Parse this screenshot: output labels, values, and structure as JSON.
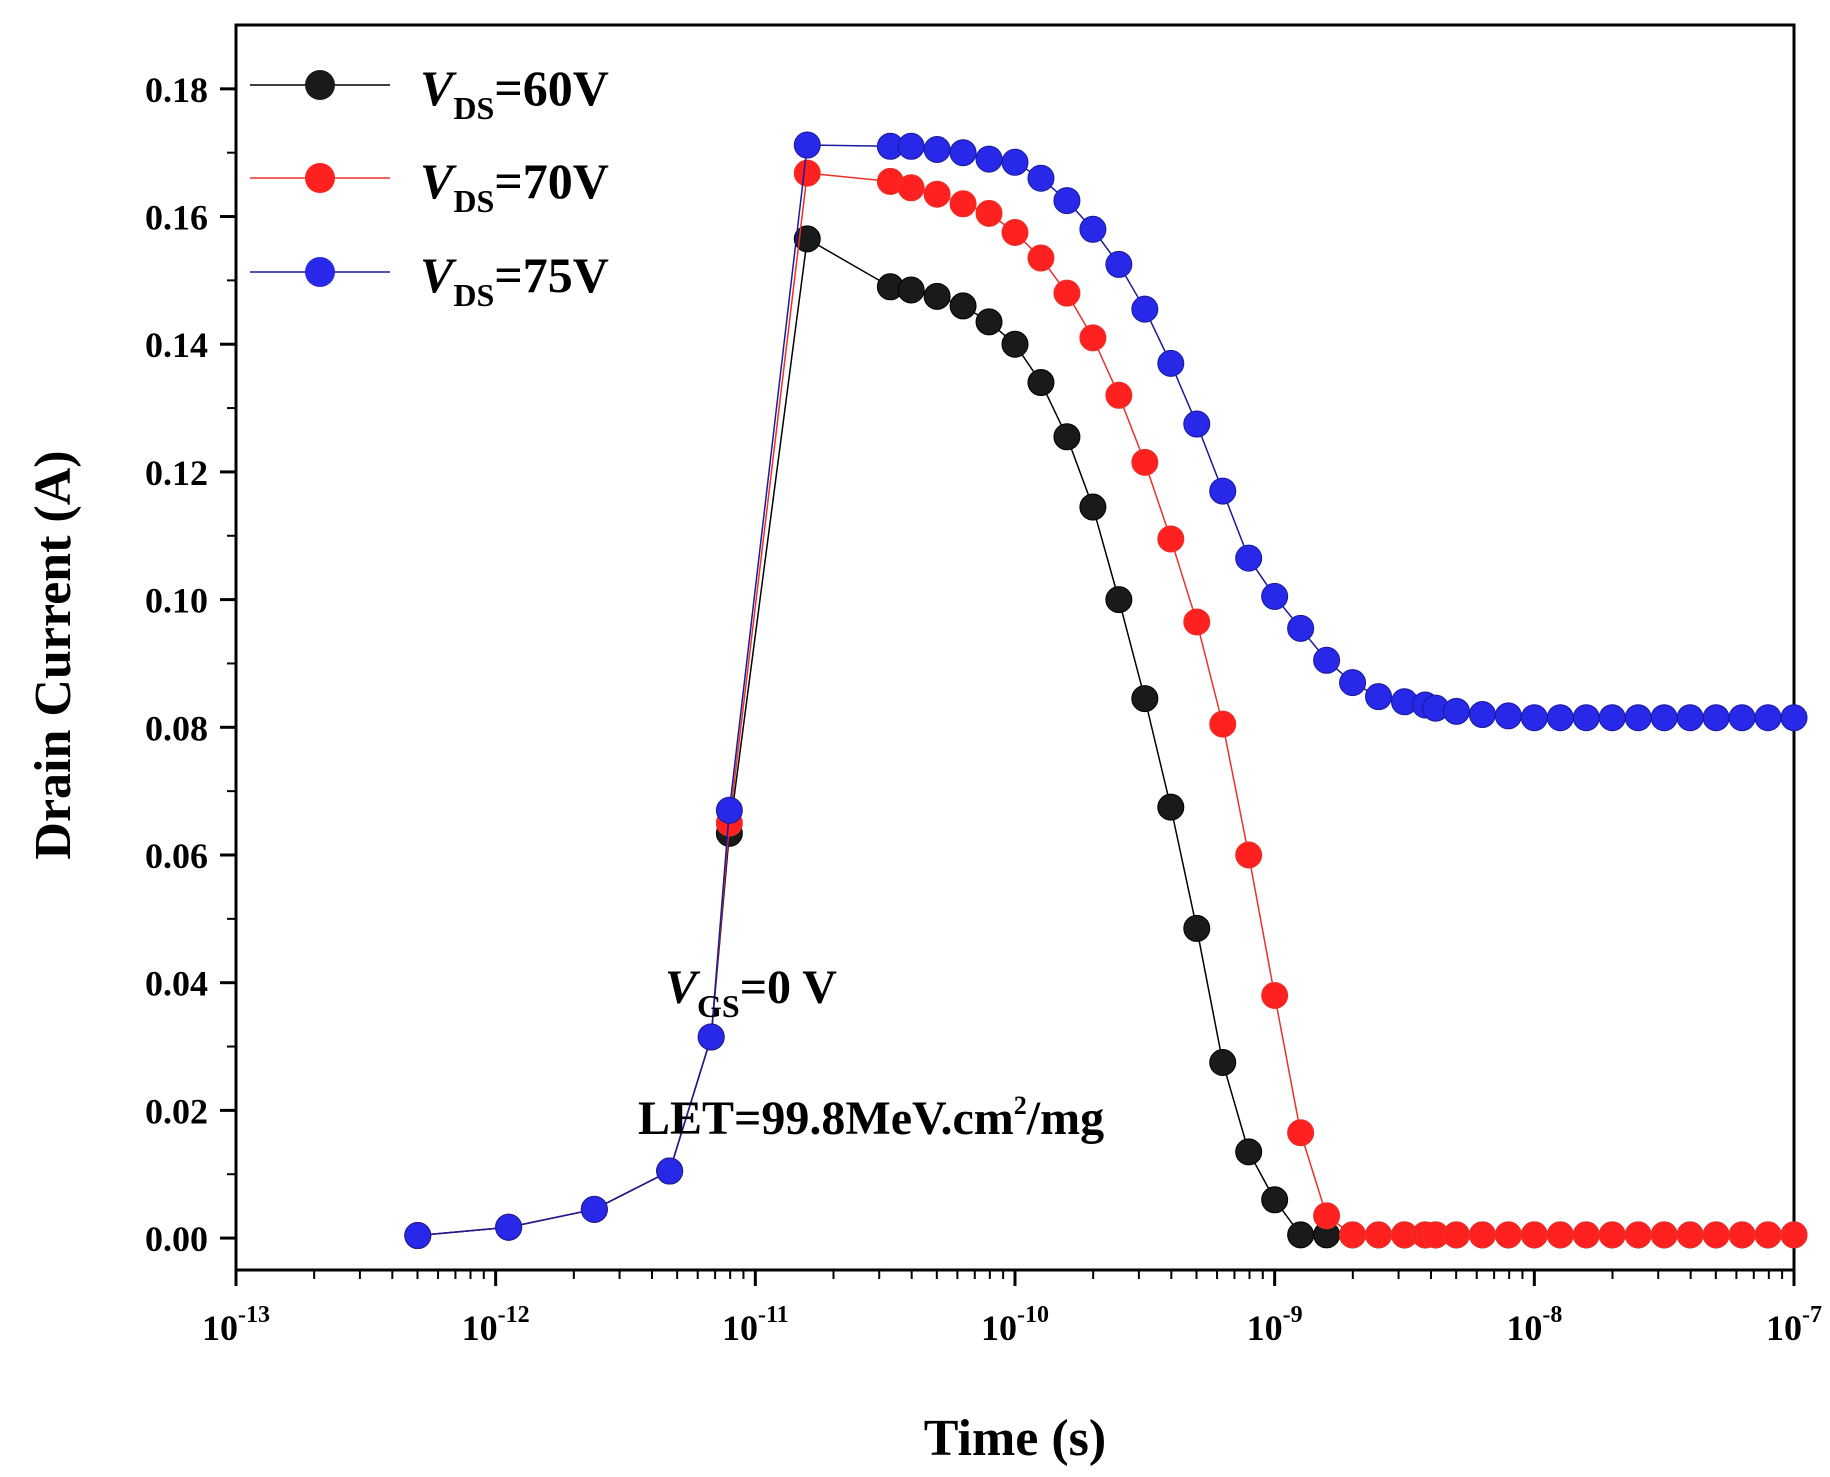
{
  "chart_data": {
    "type": "scatter",
    "title": "",
    "xlabel": "Time (s)",
    "ylabel": "Drain Current (A)",
    "xscale": "log",
    "xlim_exp": [
      -13,
      -7
    ],
    "ylim": [
      -0.005,
      0.19
    ],
    "x_tick_base": "10",
    "x_tick_exponents": [
      "-13",
      "-12",
      "-11",
      "-10",
      "-9",
      "-8",
      "-7"
    ],
    "y_ticks": [
      "0.00",
      "0.02",
      "0.04",
      "0.06",
      "0.08",
      "0.10",
      "0.12",
      "0.14",
      "0.16",
      "0.18"
    ],
    "legend_position": "top-left",
    "series": [
      {
        "name": "VDS=60V",
        "label_italic": "V",
        "label_sub": "DS",
        "label_rest": "=60V",
        "color": "#000000",
        "marker_color": "#1a1a1a",
        "logt": [
          -12.3,
          -11.95,
          -11.62,
          -11.33,
          -11.17,
          -11.1,
          -10.8,
          -10.48,
          -10.4,
          -10.3,
          -10.2,
          -10.1,
          -10.0,
          -9.9,
          -9.8,
          -9.7,
          -9.6,
          -9.5,
          -9.4,
          -9.3,
          -9.2,
          -9.1,
          -9.0,
          -8.9,
          -8.8,
          -8.7,
          -8.6,
          -8.5,
          -8.42,
          -8.38,
          -8.3,
          -8.2,
          -8.1,
          -8.0,
          -7.9,
          -7.8,
          -7.7,
          -7.6,
          -7.5,
          -7.4,
          -7.3,
          -7.2,
          -7.1,
          -7.0
        ],
        "values": [
          0.0004,
          0.0017,
          0.0045,
          0.0105,
          0.0315,
          0.0634,
          0.1565,
          0.149,
          0.1485,
          0.1475,
          0.146,
          0.1435,
          0.14,
          0.134,
          0.1255,
          0.1145,
          0.1,
          0.0845,
          0.0675,
          0.0485,
          0.0275,
          0.0135,
          0.006,
          0.0005,
          0.0005,
          0.0005,
          0.0005,
          0.0005,
          0.0005,
          0.0005,
          0.0005,
          0.0005,
          0.0005,
          0.0005,
          0.0005,
          0.0005,
          0.0005,
          0.0005,
          0.0005,
          0.0005,
          0.0005,
          0.0005,
          0.0005,
          0.0005
        ]
      },
      {
        "name": "VDS=70V",
        "label_italic": "V",
        "label_sub": "DS",
        "label_rest": "=70V",
        "color": "#e8322a",
        "marker_color": "#ff2020",
        "logt": [
          -12.3,
          -11.95,
          -11.62,
          -11.33,
          -11.17,
          -11.1,
          -10.8,
          -10.48,
          -10.4,
          -10.3,
          -10.2,
          -10.1,
          -10.0,
          -9.9,
          -9.8,
          -9.7,
          -9.6,
          -9.5,
          -9.4,
          -9.3,
          -9.2,
          -9.1,
          -9.0,
          -8.9,
          -8.8,
          -8.7,
          -8.6,
          -8.5,
          -8.42,
          -8.38,
          -8.3,
          -8.2,
          -8.1,
          -8.0,
          -7.9,
          -7.8,
          -7.7,
          -7.6,
          -7.5,
          -7.4,
          -7.3,
          -7.2,
          -7.1,
          -7.0
        ],
        "values": [
          0.0004,
          0.0017,
          0.0045,
          0.0105,
          0.0315,
          0.065,
          0.1668,
          0.1655,
          0.1645,
          0.1635,
          0.162,
          0.1605,
          0.1575,
          0.1535,
          0.148,
          0.141,
          0.132,
          0.1215,
          0.1095,
          0.0965,
          0.0805,
          0.06,
          0.038,
          0.0165,
          0.0035,
          0.0005,
          0.0005,
          0.0005,
          0.0005,
          0.0005,
          0.0005,
          0.0005,
          0.0005,
          0.0005,
          0.0005,
          0.0005,
          0.0005,
          0.0005,
          0.0005,
          0.0005,
          0.0005,
          0.0005,
          0.0005,
          0.0005
        ]
      },
      {
        "name": "VDS=75V",
        "label_italic": "V",
        "label_sub": "DS",
        "label_rest": "=75V",
        "color": "#1a1a9a",
        "marker_color": "#2828e8",
        "logt": [
          -12.3,
          -11.95,
          -11.62,
          -11.33,
          -11.17,
          -11.1,
          -10.8,
          -10.48,
          -10.4,
          -10.3,
          -10.2,
          -10.1,
          -10.0,
          -9.9,
          -9.8,
          -9.7,
          -9.6,
          -9.5,
          -9.4,
          -9.3,
          -9.2,
          -9.1,
          -9.0,
          -8.9,
          -8.8,
          -8.7,
          -8.6,
          -8.5,
          -8.42,
          -8.38,
          -8.3,
          -8.2,
          -8.1,
          -8.0,
          -7.9,
          -7.8,
          -7.7,
          -7.6,
          -7.5,
          -7.4,
          -7.3,
          -7.2,
          -7.1,
          -7.0
        ],
        "values": [
          0.0004,
          0.0017,
          0.0045,
          0.0105,
          0.0315,
          0.067,
          0.1712,
          0.171,
          0.171,
          0.1705,
          0.17,
          0.169,
          0.1685,
          0.166,
          0.1625,
          0.158,
          0.1525,
          0.1455,
          0.137,
          0.1275,
          0.117,
          0.1065,
          0.1005,
          0.0955,
          0.0905,
          0.087,
          0.0848,
          0.084,
          0.0835,
          0.083,
          0.0825,
          0.082,
          0.0818,
          0.0815,
          0.0815,
          0.0815,
          0.0815,
          0.0815,
          0.0815,
          0.0815,
          0.0815,
          0.0815,
          0.0815,
          0.0815
        ]
      }
    ],
    "annotations": [
      {
        "id": "vgs",
        "italic": "V",
        "sub": "GS",
        "rest": "=0 V"
      },
      {
        "id": "let",
        "prefix": "LET=99.8MeV.cm",
        "sup": "2",
        "suffix": "/mg"
      }
    ]
  }
}
